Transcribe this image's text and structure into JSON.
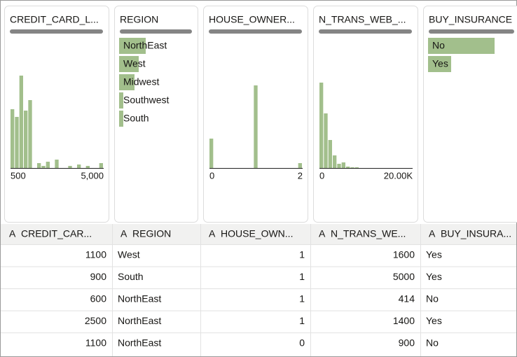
{
  "columns": [
    {
      "card_title": "CREDIT_CARD_L...",
      "type_icon": "A",
      "header": "CREDIT_CAR...",
      "chart": {
        "type": "histogram",
        "ylim": [
          0,
          140
        ],
        "values": [
          84,
          73,
          132,
          82,
          97,
          0,
          7,
          3,
          9,
          0,
          12,
          0,
          0,
          3,
          0,
          5,
          0,
          3,
          0,
          0,
          7
        ],
        "axis_labels": [
          "500",
          "5,000"
        ]
      }
    },
    {
      "card_title": "REGION",
      "type_icon": "A",
      "header": "REGION",
      "chart": {
        "type": "hbar",
        "xlim": [
          0,
          140
        ],
        "categories": [
          "NorthEast",
          "West",
          "Midwest",
          "Southwest",
          "South"
        ],
        "values": [
          38,
          28,
          22,
          6,
          6
        ]
      }
    },
    {
      "card_title": "HOUSE_OWNER...",
      "type_icon": "A",
      "header": "HOUSE_OWN...",
      "chart": {
        "type": "histogram",
        "ylim": [
          0,
          140
        ],
        "values": [
          42,
          0,
          0,
          0,
          0,
          0,
          0,
          0,
          0,
          0,
          118,
          0,
          0,
          0,
          0,
          0,
          0,
          0,
          0,
          0,
          7
        ],
        "axis_labels": [
          "0",
          "2"
        ]
      }
    },
    {
      "card_title": "N_TRANS_WEB_...",
      "type_icon": "A",
      "header": "N_TRANS_WE...",
      "chart": {
        "type": "histogram",
        "ylim": [
          0,
          140
        ],
        "values": [
          122,
          78,
          40,
          18,
          6,
          8,
          2,
          1,
          1,
          0,
          0,
          0,
          0,
          0,
          0,
          0,
          0,
          0,
          0,
          0,
          0
        ],
        "axis_labels": [
          "0",
          "20.00K"
        ]
      }
    },
    {
      "card_title": "BUY_INSURANCE",
      "type_icon": "A",
      "header": "BUY_INSURA...",
      "chart": {
        "type": "hbar",
        "xlim": [
          0,
          140
        ],
        "categories": [
          "No",
          "Yes"
        ],
        "values": [
          95,
          33
        ]
      }
    }
  ],
  "rows": [
    [
      1100,
      "West",
      1,
      1600,
      "Yes"
    ],
    [
      900,
      "South",
      1,
      5000,
      "Yes"
    ],
    [
      600,
      "NorthEast",
      1,
      414,
      "No"
    ],
    [
      2500,
      "NorthEast",
      1,
      1400,
      "Yes"
    ],
    [
      1100,
      "NorthEast",
      0,
      900,
      "No"
    ]
  ]
}
